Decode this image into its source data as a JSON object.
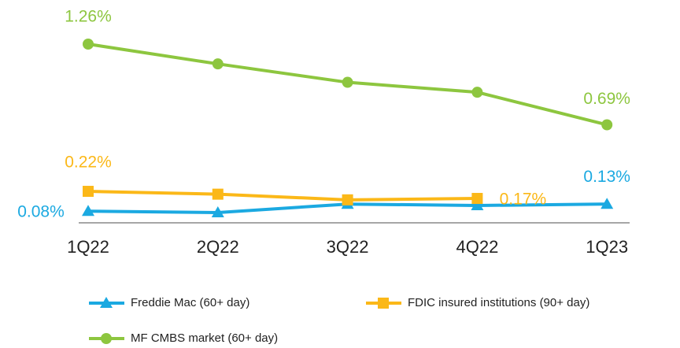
{
  "chart_data": {
    "type": "line",
    "categories": [
      "1Q22",
      "2Q22",
      "3Q22",
      "4Q22",
      "1Q23"
    ],
    "series": [
      {
        "name": "Freddie Mac (60+ day)",
        "color": "#1ba9e1",
        "marker": "triangle",
        "values": [
          0.08,
          0.07,
          0.13,
          0.12,
          0.13
        ],
        "value_labels": [
          "0.08%",
          null,
          null,
          null,
          "0.13%"
        ]
      },
      {
        "name": "FDIC insured institutions (90+ day)",
        "color": "#fbb818",
        "marker": "square",
        "values": [
          0.22,
          0.2,
          0.16,
          0.17,
          null
        ],
        "value_labels": [
          "0.22%",
          null,
          null,
          "0.17%",
          null
        ]
      },
      {
        "name": "MF CMBS market (60+ day)",
        "color": "#8dc63f",
        "marker": "circle",
        "values": [
          1.26,
          1.12,
          0.99,
          0.92,
          0.69
        ],
        "value_labels": [
          "1.26%",
          null,
          null,
          null,
          "0.69%"
        ]
      }
    ]
  }
}
